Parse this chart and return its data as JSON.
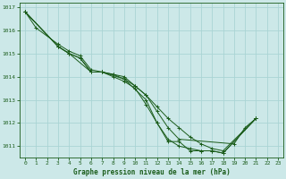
{
  "title": "Graphe pression niveau de la mer (hPa)",
  "background_color": "#cce8e8",
  "grid_color": "#aad4d4",
  "line_color": "#1a5c1a",
  "xlim": [
    -0.5,
    23.5
  ],
  "ylim": [
    1010.5,
    1017.2
  ],
  "yticks": [
    1011,
    1012,
    1013,
    1014,
    1015,
    1016,
    1017
  ],
  "xticks": [
    0,
    1,
    2,
    3,
    4,
    5,
    6,
    7,
    8,
    9,
    10,
    11,
    12,
    13,
    14,
    15,
    16,
    17,
    18,
    19,
    20,
    21,
    22,
    23
  ],
  "series": [
    [
      [
        0,
        1016.8
      ],
      [
        1,
        1016.1
      ],
      [
        3,
        1015.4
      ],
      [
        4,
        1015.1
      ],
      [
        5,
        1014.9
      ],
      [
        6,
        1014.3
      ],
      [
        7,
        1014.2
      ],
      [
        8,
        1014.1
      ],
      [
        9,
        1014.0
      ],
      [
        10,
        1013.6
      ],
      [
        11,
        1013.2
      ],
      [
        12,
        1012.5
      ],
      [
        13,
        1011.8
      ],
      [
        14,
        1011.3
      ],
      [
        19,
        1011.1
      ],
      [
        20,
        1011.8
      ],
      [
        21,
        1012.2
      ]
    ],
    [
      [
        0,
        1016.8
      ],
      [
        3,
        1015.3
      ],
      [
        4,
        1015.0
      ],
      [
        5,
        1014.8
      ],
      [
        6,
        1014.2
      ],
      [
        7,
        1014.2
      ],
      [
        8,
        1014.1
      ],
      [
        9,
        1013.9
      ],
      [
        10,
        1013.6
      ],
      [
        11,
        1013.2
      ],
      [
        12,
        1012.7
      ],
      [
        13,
        1012.2
      ],
      [
        14,
        1011.8
      ],
      [
        15,
        1011.4
      ],
      [
        16,
        1011.1
      ],
      [
        17,
        1010.9
      ],
      [
        18,
        1010.8
      ],
      [
        21,
        1012.2
      ]
    ],
    [
      [
        0,
        1016.8
      ],
      [
        3,
        1015.3
      ],
      [
        4,
        1015.0
      ],
      [
        5,
        1014.8
      ],
      [
        6,
        1014.2
      ],
      [
        7,
        1014.2
      ],
      [
        8,
        1014.0
      ],
      [
        9,
        1013.8
      ],
      [
        10,
        1013.5
      ],
      [
        11,
        1012.8
      ],
      [
        12,
        1012.0
      ],
      [
        13,
        1011.3
      ],
      [
        14,
        1011.0
      ],
      [
        15,
        1010.9
      ],
      [
        16,
        1010.8
      ],
      [
        17,
        1010.8
      ],
      [
        18,
        1010.7
      ],
      [
        21,
        1012.2
      ]
    ],
    [
      [
        0,
        1016.8
      ],
      [
        3,
        1015.3
      ],
      [
        4,
        1015.0
      ],
      [
        6,
        1014.2
      ],
      [
        7,
        1014.2
      ],
      [
        9,
        1013.9
      ],
      [
        11,
        1013.0
      ],
      [
        12,
        1012.0
      ],
      [
        13,
        1011.2
      ],
      [
        14,
        1011.2
      ],
      [
        15,
        1010.8
      ],
      [
        16,
        1010.8
      ],
      [
        17,
        1010.8
      ],
      [
        18,
        1010.7
      ],
      [
        21,
        1012.2
      ]
    ]
  ]
}
